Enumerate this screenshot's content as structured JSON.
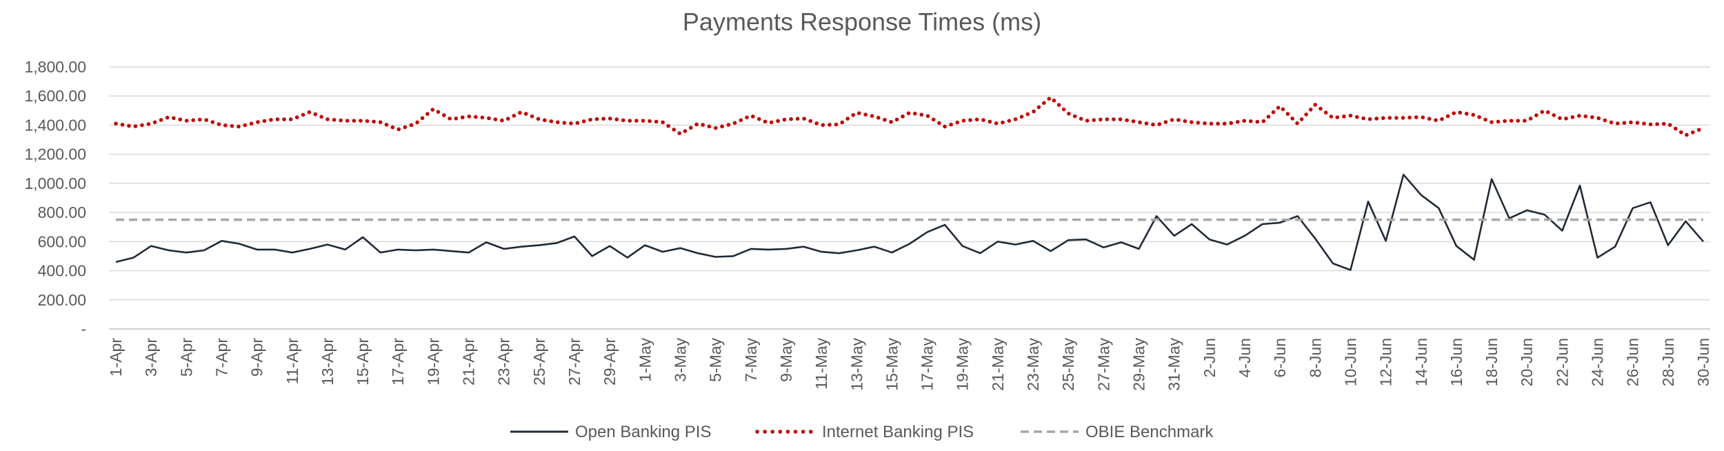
{
  "chart_data": {
    "type": "line",
    "title": "Payments Response Times (ms)",
    "xlabel": "",
    "ylabel": "",
    "ylim": [
      0,
      1800
    ],
    "yticks": [
      0,
      200,
      400,
      600,
      800,
      1000,
      1200,
      1400,
      1600,
      1800
    ],
    "ytick_labels": [
      "-",
      "200.00",
      "400.00",
      "600.00",
      "800.00",
      "1,000.00",
      "1,200.00",
      "1,400.00",
      "1,600.00",
      "1,800.00"
    ],
    "grid": true,
    "legend_position": "bottom",
    "categories": [
      "1-Apr",
      "2-Apr",
      "3-Apr",
      "4-Apr",
      "5-Apr",
      "6-Apr",
      "7-Apr",
      "8-Apr",
      "9-Apr",
      "10-Apr",
      "11-Apr",
      "12-Apr",
      "13-Apr",
      "14-Apr",
      "15-Apr",
      "16-Apr",
      "17-Apr",
      "18-Apr",
      "19-Apr",
      "20-Apr",
      "21-Apr",
      "22-Apr",
      "23-Apr",
      "24-Apr",
      "25-Apr",
      "26-Apr",
      "27-Apr",
      "28-Apr",
      "29-Apr",
      "30-Apr",
      "1-May",
      "2-May",
      "3-May",
      "4-May",
      "5-May",
      "6-May",
      "7-May",
      "8-May",
      "9-May",
      "10-May",
      "11-May",
      "12-May",
      "13-May",
      "14-May",
      "15-May",
      "16-May",
      "17-May",
      "18-May",
      "19-May",
      "20-May",
      "21-May",
      "22-May",
      "23-May",
      "24-May",
      "25-May",
      "26-May",
      "27-May",
      "28-May",
      "29-May",
      "30-May",
      "31-May",
      "1-Jun",
      "2-Jun",
      "3-Jun",
      "4-Jun",
      "5-Jun",
      "6-Jun",
      "7-Jun",
      "8-Jun",
      "9-Jun",
      "10-Jun",
      "11-Jun",
      "12-Jun",
      "13-Jun",
      "14-Jun",
      "15-Jun",
      "16-Jun",
      "17-Jun",
      "18-Jun",
      "19-Jun",
      "20-Jun",
      "21-Jun",
      "22-Jun",
      "23-Jun",
      "24-Jun",
      "25-Jun",
      "26-Jun",
      "27-Jun",
      "28-Jun",
      "29-Jun",
      "30-Jun"
    ],
    "labeled_every": 2,
    "series": [
      {
        "name": "Open Banking PIS",
        "style": "solid",
        "color": "#1f2a36",
        "values": [
          460,
          490,
          570,
          540,
          525,
          540,
          605,
          585,
          545,
          545,
          525,
          550,
          580,
          545,
          630,
          525,
          545,
          540,
          545,
          535,
          525,
          595,
          550,
          565,
          575,
          590,
          635,
          500,
          570,
          490,
          575,
          530,
          555,
          520,
          495,
          500,
          550,
          545,
          550,
          565,
          530,
          520,
          540,
          565,
          525,
          585,
          665,
          715,
          570,
          520,
          600,
          580,
          605,
          535,
          610,
          615,
          560,
          595,
          550,
          775,
          640,
          720,
          615,
          580,
          640,
          720,
          730,
          775,
          620,
          450,
          405,
          875,
          605,
          1060,
          920,
          830,
          570,
          475,
          1030,
          760,
          815,
          785,
          675,
          985,
          490,
          565,
          830,
          870,
          575,
          740,
          600
        ]
      },
      {
        "name": "Internet Banking PIS",
        "style": "dotted",
        "color": "#c00000",
        "values": [
          1410,
          1390,
          1410,
          1455,
          1430,
          1440,
          1400,
          1390,
          1420,
          1440,
          1440,
          1490,
          1440,
          1430,
          1430,
          1420,
          1370,
          1410,
          1510,
          1440,
          1460,
          1450,
          1430,
          1490,
          1440,
          1420,
          1410,
          1440,
          1445,
          1430,
          1430,
          1420,
          1340,
          1410,
          1380,
          1410,
          1465,
          1415,
          1440,
          1445,
          1400,
          1405,
          1485,
          1460,
          1420,
          1485,
          1465,
          1390,
          1430,
          1440,
          1410,
          1440,
          1490,
          1590,
          1480,
          1430,
          1440,
          1440,
          1420,
          1400,
          1440,
          1420,
          1410,
          1410,
          1430,
          1420,
          1530,
          1410,
          1540,
          1450,
          1465,
          1440,
          1450,
          1450,
          1455,
          1430,
          1490,
          1470,
          1420,
          1430,
          1430,
          1500,
          1440,
          1465,
          1450,
          1410,
          1420,
          1405,
          1410,
          1330,
          1380
        ]
      },
      {
        "name": "OBIE Benchmark",
        "style": "dashed",
        "color": "#a6a6a6",
        "value": 750
      }
    ]
  }
}
